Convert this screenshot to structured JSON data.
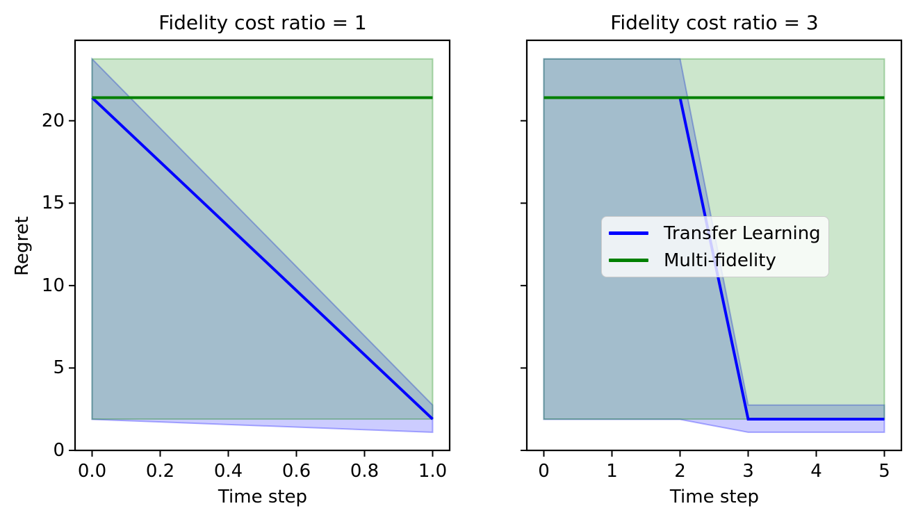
{
  "figure": {
    "background": "#ffffff",
    "text_color": "#000000",
    "axis_color": "#000000"
  },
  "chart_data": [
    {
      "type": "line",
      "title": "Fidelity cost ratio = 1",
      "xlabel": "Time step",
      "ylabel": "Regret",
      "x": [
        0.0,
        1.0
      ],
      "xlim": [
        -0.05,
        1.05
      ],
      "ylim": [
        0,
        24.88
      ],
      "xtick_values": [
        0.0,
        0.2,
        0.4,
        0.6,
        0.8,
        1.0
      ],
      "xtick_labels": [
        "0.0",
        "0.2",
        "0.4",
        "0.6",
        "0.8",
        "1.0"
      ],
      "ytick_values": [
        0,
        5,
        10,
        15,
        20
      ],
      "ytick_labels": [
        "0",
        "5",
        "10",
        "15",
        "20"
      ],
      "grid": false,
      "legend": null,
      "fill_alpha": 0.2,
      "band_edge_alpha": 0.3,
      "series": [
        {
          "name": "Transfer Learning",
          "color": "#0000ff",
          "values": [
            21.4,
            1.9
          ],
          "band_lower": [
            1.88,
            1.1
          ],
          "band_upper": [
            23.75,
            2.75
          ]
        },
        {
          "name": "Multi-fidelity",
          "color": "#008000",
          "values": [
            21.4,
            21.4
          ],
          "band_lower": [
            1.9,
            1.9
          ],
          "band_upper": [
            23.75,
            23.75
          ]
        }
      ]
    },
    {
      "type": "line",
      "title": "Fidelity cost ratio = 3",
      "xlabel": "Time step",
      "ylabel": "",
      "x": [
        0,
        1,
        2,
        3,
        4,
        5
      ],
      "xlim": [
        -0.25,
        5.25
      ],
      "ylim": [
        0,
        24.88
      ],
      "xtick_values": [
        0,
        1,
        2,
        3,
        4,
        5
      ],
      "xtick_labels": [
        "0",
        "1",
        "2",
        "3",
        "4",
        "5"
      ],
      "ytick_values": [
        0,
        5,
        10,
        15,
        20
      ],
      "ytick_labels": [],
      "grid": false,
      "legend": {
        "position": "center",
        "entries": [
          "Transfer Learning",
          "Multi-fidelity"
        ]
      },
      "fill_alpha": 0.2,
      "band_edge_alpha": 0.3,
      "series": [
        {
          "name": "Transfer Learning",
          "color": "#0000ff",
          "values": [
            21.4,
            21.4,
            21.4,
            1.9,
            1.9,
            1.9
          ],
          "band_lower": [
            1.88,
            1.88,
            1.88,
            1.1,
            1.1,
            1.1
          ],
          "band_upper": [
            23.75,
            23.75,
            23.75,
            2.75,
            2.75,
            2.75
          ]
        },
        {
          "name": "Multi-fidelity",
          "color": "#008000",
          "values": [
            21.4,
            21.4,
            21.4,
            21.4,
            21.4,
            21.4
          ],
          "band_lower": [
            1.9,
            1.9,
            1.9,
            1.9,
            1.9,
            1.9
          ],
          "band_upper": [
            23.75,
            23.75,
            23.75,
            23.75,
            23.75,
            23.75
          ]
        }
      ]
    }
  ]
}
